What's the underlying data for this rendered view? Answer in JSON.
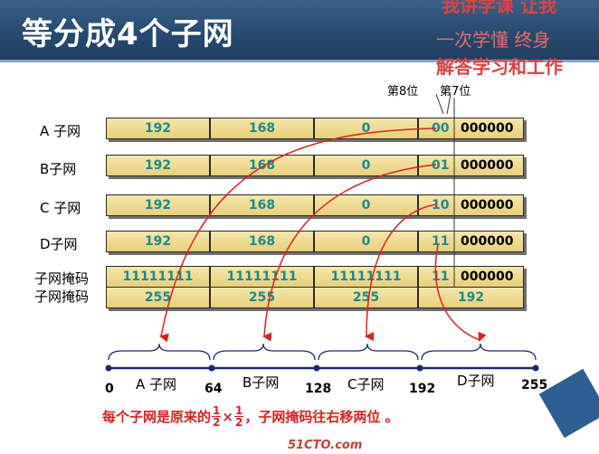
{
  "title": "等分成4个子网",
  "overlay": {
    "line1": "我讲学课 让我",
    "line2": "一次学懂  终身",
    "line3": "解答学习和工作"
  },
  "bit_headers": {
    "bit8": "第8位",
    "bit7": "第7位"
  },
  "rows": [
    {
      "label": "A 子网",
      "o1": "192",
      "o2": "168",
      "o3": "0",
      "bits": "00",
      "rest": "000000"
    },
    {
      "label": "B子网",
      "o1": "192",
      "o2": "168",
      "o3": "0",
      "bits": "01",
      "rest": "000000"
    },
    {
      "label": "C 子网",
      "o1": "192",
      "o2": "168",
      "o3": "0",
      "bits": "10",
      "rest": "000000"
    },
    {
      "label": "D子网",
      "o1": "192",
      "o2": "168",
      "o3": "0",
      "bits": "11",
      "rest": "000000"
    }
  ],
  "mask_binary": {
    "label": "子网掩码",
    "o1": "11111111",
    "o2": "11111111",
    "o3": "11111111",
    "bits": "11",
    "rest": "000000"
  },
  "mask_decimal": {
    "label": "子网掩码",
    "o1": "255",
    "o2": "255",
    "o3": "255",
    "o4": "192"
  },
  "segments": [
    {
      "label": "A 子网"
    },
    {
      "label": "B子网"
    },
    {
      "label": "C子网"
    },
    {
      "label": "D子网"
    }
  ],
  "ticks": [
    "0",
    "64",
    "128",
    "192",
    "255"
  ],
  "note": {
    "prefix": "每个子网是原来的",
    "frac_num": "1",
    "frac_den": "2",
    "times": "×",
    "suffix": "，子网掩码往右移两位 。"
  },
  "watermark": "51CTO.com",
  "colors": {
    "title_bg": "#26496d",
    "cell": "#ecd68a",
    "arrow": "#e02020",
    "axis": "#1a2a6c"
  }
}
